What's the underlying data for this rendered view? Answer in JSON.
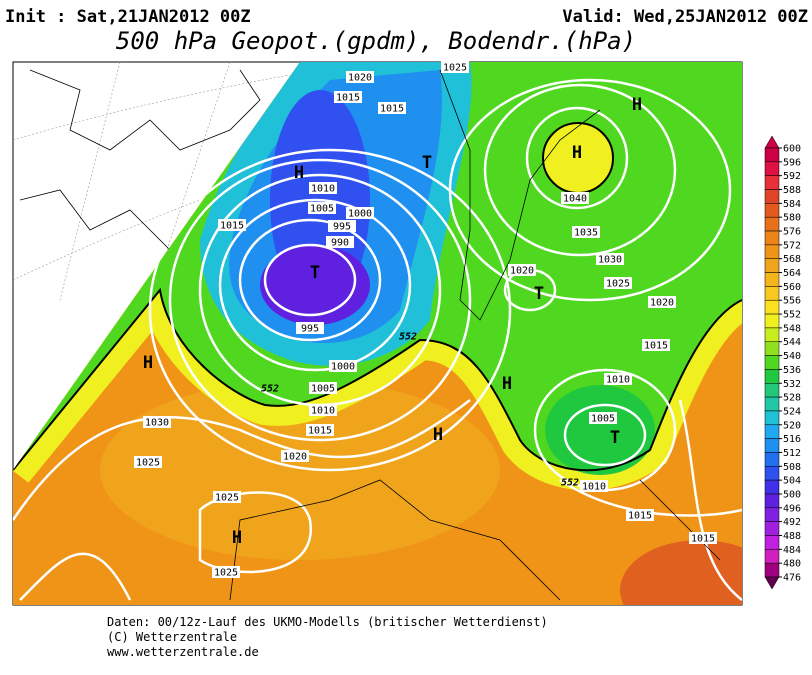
{
  "header": {
    "init": "Init : Sat,21JAN2012 00Z",
    "valid": "Valid: Wed,25JAN2012 00Z",
    "title": "500 hPa Geopot.(gpdm), Bodendr.(hPa)"
  },
  "legend": {
    "levels": [
      600,
      596,
      592,
      588,
      584,
      580,
      576,
      572,
      568,
      564,
      560,
      556,
      552,
      548,
      544,
      540,
      536,
      532,
      528,
      524,
      520,
      516,
      512,
      508,
      504,
      500,
      496,
      492,
      488,
      484,
      480,
      476
    ],
    "colors": [
      "#cc0044",
      "#dd1144",
      "#e8303a",
      "#e04428",
      "#e45a1e",
      "#e8701a",
      "#ec8418",
      "#f09418",
      "#f0a41c",
      "#f4b41c",
      "#f8c820",
      "#fce020",
      "#f0f020",
      "#c8ee20",
      "#90e020",
      "#50d820",
      "#20c840",
      "#20c878",
      "#20c8a8",
      "#20c0d8",
      "#20a8f0",
      "#2090f0",
      "#2070f0",
      "#3050f0",
      "#4030e8",
      "#6020e0",
      "#8020e0",
      "#a020e0",
      "#c020e0",
      "#d020c0",
      "#a00080",
      "#600050"
    ]
  },
  "map": {
    "labels": [
      "1020",
      "1015",
      "1015",
      "1010",
      "1005",
      "1000",
      "995",
      "990",
      "995",
      "1000",
      "1005",
      "1010",
      "1015",
      "1020",
      "1015",
      "1030",
      "1025",
      "1025",
      "1025",
      "1025",
      "1020",
      "1025",
      "1030",
      "1035",
      "1040",
      "1020",
      "1015",
      "1010",
      "1005",
      "1010",
      "1015",
      "1015",
      "552",
      "552",
      "552",
      "H",
      "T",
      "H",
      "H",
      "T",
      "T",
      "H",
      "H",
      "H",
      "T",
      "H"
    ]
  },
  "footer": {
    "lines": [
      "Daten: 00/12z-Lauf des UKMO-Modells (britischer Wetterdienst)",
      "(C) Wetterzentrale",
      "www.wetterzentrale.de"
    ]
  }
}
